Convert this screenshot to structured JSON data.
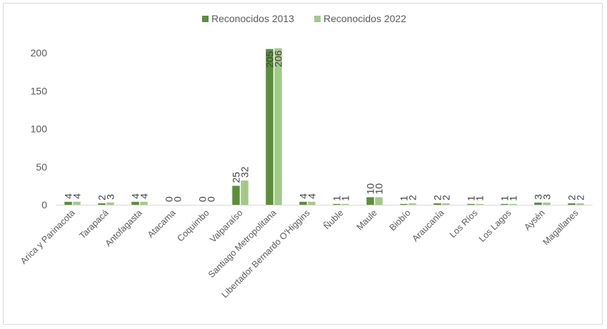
{
  "chart_data": {
    "type": "bar",
    "categories": [
      "Arica y Parinacota",
      "Tarapacá",
      "Antofagasta",
      "Atacama",
      "Coquimbo",
      "Valparaíso",
      "Santiago Metropolitana",
      "Libertador Bernardo O'Higgins",
      "Ñuble",
      "Maule",
      "Biobío",
      "Araucanía",
      "Los Ríos",
      "Los Lagos",
      "Aysén",
      "Magallanes"
    ],
    "series": [
      {
        "name": "Reconocidos 2013",
        "values": [
          4,
          2,
          4,
          0,
          0,
          25,
          205,
          4,
          1,
          10,
          1,
          2,
          1,
          1,
          3,
          2
        ],
        "color": "#5b8f3a"
      },
      {
        "name": "Reconocidos 2022",
        "values": [
          4,
          3,
          4,
          0,
          0,
          32,
          206,
          4,
          1,
          10,
          2,
          2,
          1,
          1,
          3,
          2
        ],
        "color": "#a3c98a"
      }
    ],
    "yticks": [
      0,
      50,
      100,
      150,
      200
    ],
    "ylim": [
      0,
      200
    ],
    "grid": false,
    "legend": "top-center",
    "title": "",
    "xlabel": "",
    "ylabel": ""
  }
}
